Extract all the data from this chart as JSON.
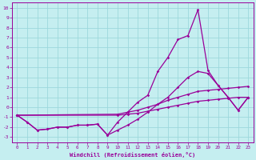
{
  "xlabel": "Windchill (Refroidissement éolien,°C)",
  "background_color": "#c5eef0",
  "grid_color": "#9dd8dc",
  "line_color": "#990099",
  "xlim": [
    -0.5,
    23.5
  ],
  "ylim": [
    -3.5,
    10.5
  ],
  "xticks": [
    0,
    1,
    2,
    3,
    4,
    5,
    6,
    7,
    8,
    9,
    10,
    11,
    12,
    13,
    14,
    15,
    16,
    17,
    18,
    19,
    20,
    21,
    22,
    23
  ],
  "yticks": [
    -3,
    -2,
    -1,
    0,
    1,
    2,
    3,
    4,
    5,
    6,
    7,
    8,
    9,
    10
  ],
  "line1_x": [
    0,
    1,
    2,
    3,
    4,
    5,
    6,
    7,
    8,
    9,
    10,
    11,
    12,
    13,
    14,
    15,
    16,
    17,
    18,
    19,
    20,
    21,
    22,
    23
  ],
  "line1_y": [
    -0.8,
    -1.5,
    -2.3,
    -2.2,
    -2.0,
    -2.0,
    -1.8,
    -1.8,
    -1.7,
    -2.8,
    -1.5,
    -0.5,
    0.5,
    1.2,
    3.6,
    5.0,
    6.8,
    7.2,
    9.8,
    3.7,
    2.2,
    1.0,
    -0.3,
    1.0
  ],
  "line2_x": [
    0,
    1,
    2,
    3,
    4,
    5,
    6,
    7,
    8,
    9,
    10,
    11,
    12,
    13,
    14,
    15,
    16,
    17,
    18,
    19,
    20,
    21,
    22,
    23
  ],
  "line2_y": [
    -0.8,
    -1.5,
    -2.3,
    -2.2,
    -2.0,
    -2.0,
    -1.8,
    -1.8,
    -1.7,
    -2.8,
    -2.3,
    -1.8,
    -1.2,
    -0.5,
    0.3,
    1.0,
    2.0,
    3.0,
    3.6,
    3.4,
    2.2,
    1.0,
    -0.3,
    1.0
  ],
  "line3_x": [
    0,
    10,
    11,
    12,
    13,
    14,
    15,
    16,
    17,
    18,
    19,
    20,
    21,
    22,
    23
  ],
  "line3_y": [
    -0.8,
    -0.7,
    -0.5,
    -0.3,
    0.0,
    0.3,
    0.7,
    1.0,
    1.3,
    1.6,
    1.7,
    1.8,
    1.9,
    2.0,
    2.1
  ],
  "line4_x": [
    0,
    10,
    11,
    12,
    13,
    14,
    15,
    16,
    17,
    18,
    19,
    20,
    21,
    22,
    23
  ],
  "line4_y": [
    -0.8,
    -0.8,
    -0.7,
    -0.6,
    -0.4,
    -0.2,
    0.0,
    0.2,
    0.4,
    0.6,
    0.7,
    0.8,
    0.9,
    1.0,
    1.0
  ]
}
